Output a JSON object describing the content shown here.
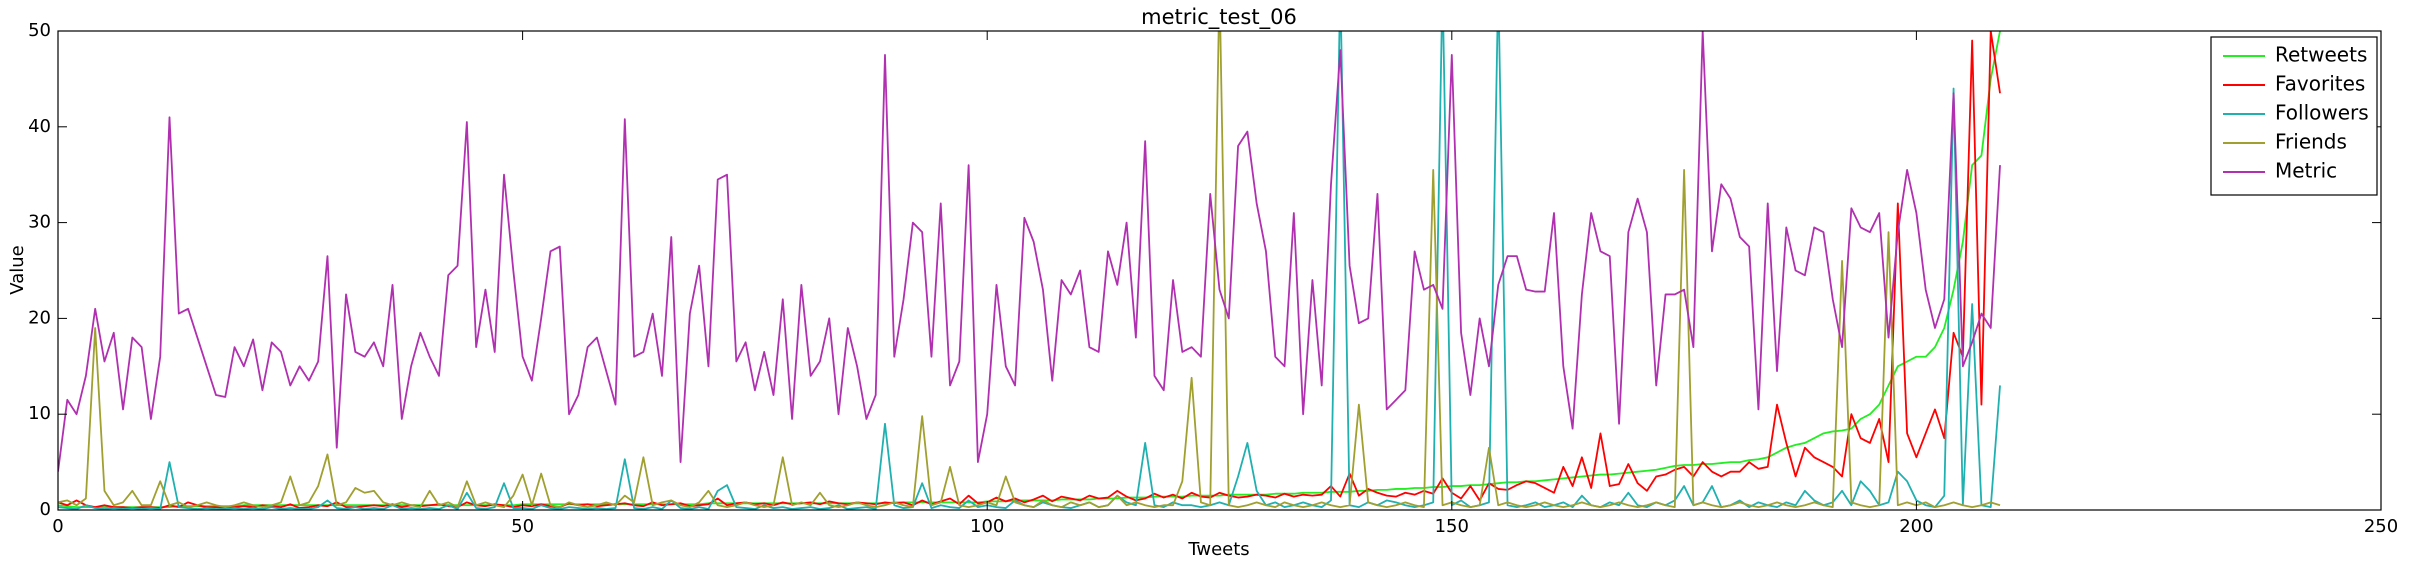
{
  "chart_data": {
    "type": "line",
    "title": "metric_test_06",
    "x_label": "Tweets",
    "y_label": "Value",
    "xlim": [
      0,
      250
    ],
    "ylim": [
      0,
      50
    ],
    "xticks": [
      0,
      50,
      100,
      150,
      200,
      250
    ],
    "yticks": [
      0,
      10,
      20,
      30,
      40,
      50
    ],
    "grid": false,
    "legend": "upper right",
    "x": [
      0,
      1,
      2,
      3,
      4,
      5,
      6,
      7,
      8,
      9,
      10,
      11,
      12,
      13,
      14,
      15,
      16,
      17,
      18,
      19,
      20,
      21,
      22,
      23,
      24,
      25,
      26,
      27,
      28,
      29,
      30,
      31,
      32,
      33,
      34,
      35,
      36,
      37,
      38,
      39,
      40,
      41,
      42,
      43,
      44,
      45,
      46,
      47,
      48,
      49,
      50,
      51,
      52,
      53,
      54,
      55,
      56,
      57,
      58,
      59,
      60,
      61,
      62,
      63,
      64,
      65,
      66,
      67,
      68,
      69,
      70,
      71,
      72,
      73,
      74,
      75,
      76,
      77,
      78,
      79,
      80,
      81,
      82,
      83,
      84,
      85,
      86,
      87,
      88,
      89,
      90,
      91,
      92,
      93,
      94,
      95,
      96,
      97,
      98,
      99,
      100,
      101,
      102,
      103,
      104,
      105,
      106,
      107,
      108,
      109,
      110,
      111,
      112,
      113,
      114,
      115,
      116,
      117,
      118,
      119,
      120,
      121,
      122,
      123,
      124,
      125,
      126,
      127,
      128,
      129,
      130,
      131,
      132,
      133,
      134,
      135,
      136,
      137,
      138,
      139,
      140,
      141,
      142,
      143,
      144,
      145,
      146,
      147,
      148,
      149,
      150,
      151,
      152,
      153,
      154,
      155,
      156,
      157,
      158,
      159,
      160,
      161,
      162,
      163,
      164,
      165,
      166,
      167,
      168,
      169,
      170,
      171,
      172,
      173,
      174,
      175,
      176,
      177,
      178,
      179,
      180,
      181,
      182,
      183,
      184,
      185,
      186,
      187,
      188,
      189,
      190,
      191,
      192,
      193,
      194,
      195,
      196,
      197,
      198,
      199,
      200,
      201,
      202,
      203,
      204,
      205,
      206,
      207,
      208,
      209
    ],
    "series": [
      {
        "name": "Retweets",
        "color": "#22ee22",
        "values": [
          0.5,
          0.4,
          0.3,
          0.3,
          0.3,
          0.3,
          0.3,
          0.3,
          0.3,
          0.3,
          0.3,
          0.3,
          0.3,
          0.4,
          0.4,
          0.4,
          0.4,
          0.4,
          0.4,
          0.4,
          0.5,
          0.5,
          0.5,
          0.5,
          0.5,
          0.5,
          0.5,
          0.5,
          0.5,
          0.5,
          0.5,
          0.5,
          0.5,
          0.5,
          0.5,
          0.5,
          0.5,
          0.5,
          0.5,
          0.5,
          0.5,
          0.5,
          0.5,
          0.5,
          0.5,
          0.5,
          0.5,
          0.5,
          0.5,
          0.5,
          0.6,
          0.6,
          0.6,
          0.6,
          0.6,
          0.6,
          0.6,
          0.6,
          0.6,
          0.6,
          0.6,
          0.6,
          0.6,
          0.6,
          0.6,
          0.6,
          0.6,
          0.6,
          0.6,
          0.6,
          0.7,
          0.7,
          0.7,
          0.7,
          0.7,
          0.7,
          0.7,
          0.7,
          0.7,
          0.7,
          0.7,
          0.7,
          0.7,
          0.7,
          0.7,
          0.7,
          0.7,
          0.7,
          0.7,
          0.7,
          0.8,
          0.8,
          0.8,
          0.8,
          0.8,
          0.8,
          0.8,
          0.8,
          0.8,
          0.8,
          0.9,
          0.9,
          0.9,
          1,
          1,
          1,
          1,
          1,
          1.1,
          1.1,
          1.1,
          1.1,
          1.2,
          1.2,
          1.2,
          1.3,
          1.3,
          1.3,
          1.4,
          1.4,
          1.4,
          1.4,
          1.5,
          1.5,
          1.5,
          1.5,
          1.6,
          1.6,
          1.6,
          1.6,
          1.6,
          1.7,
          1.7,
          1.7,
          1.8,
          1.8,
          1.8,
          1.9,
          1.9,
          1.9,
          2,
          2,
          2.1,
          2.1,
          2.2,
          2.2,
          2.3,
          2.3,
          2.4,
          2.4,
          2.5,
          2.5,
          2.6,
          2.6,
          2.7,
          2.8,
          2.9,
          2.9,
          3,
          3,
          3.1,
          3.2,
          3.3,
          3.4,
          3.5,
          3.6,
          3.7,
          3.7,
          3.8,
          3.9,
          4,
          4.1,
          4.2,
          4.4,
          4.6,
          4.7,
          4.7,
          4.8,
          4.8,
          4.9,
          5,
          5,
          5.2,
          5.3,
          5.5,
          6,
          6.5,
          6.8,
          7,
          7.5,
          8,
          8.2,
          8.3,
          8.5,
          9.5,
          10,
          11,
          13,
          15,
          15.5,
          16,
          16,
          17,
          19,
          23,
          28,
          36,
          37,
          45,
          50
        ]
      },
      {
        "name": "Favorites",
        "color": "#ff0000",
        "values": [
          0.8,
          0.5,
          1,
          0.5,
          0.3,
          0.5,
          0.3,
          0.3,
          0.2,
          0.3,
          0.3,
          0.2,
          0.5,
          0.3,
          0.8,
          0.5,
          0.3,
          0.3,
          0.2,
          0.3,
          0.4,
          0.3,
          0.5,
          0.4,
          0.3,
          0.6,
          0.2,
          0.3,
          0.5,
          0.4,
          0.8,
          0.3,
          0.3,
          0.4,
          0.5,
          0.4,
          0.6,
          0.3,
          0.5,
          0.4,
          0.5,
          0.6,
          0.4,
          0.3,
          0.8,
          0.5,
          0.4,
          0.6,
          0.5,
          0.3,
          0.5,
          0.4,
          0.6,
          0.4,
          0.3,
          0.7,
          0.5,
          0.6,
          0.4,
          0.5,
          0.6,
          0.7,
          0.5,
          0.4,
          0.8,
          0.5,
          0.6,
          0.7,
          0.4,
          0.5,
          0.6,
          1.2,
          0.5,
          0.7,
          0.8,
          0.6,
          0.7,
          0.5,
          0.8,
          0.6,
          0.7,
          0.8,
          0.6,
          0.9,
          0.7,
          0.6,
          0.8,
          0.7,
          0.6,
          0.8,
          0.7,
          0.8,
          0.5,
          1,
          0.6,
          0.9,
          1.2,
          0.6,
          1.5,
          0.7,
          0.8,
          1.3,
          0.9,
          1.2,
          0.8,
          1.1,
          1.5,
          0.9,
          1.4,
          1.2,
          1,
          1.5,
          1.2,
          1.3,
          2,
          1.4,
          1,
          1.2,
          1.7,
          1.3,
          1.6,
          1.2,
          1.8,
          1.4,
          1.3,
          1.8,
          1.5,
          1.3,
          1.4,
          1.6,
          1.5,
          1.3,
          1.7,
          1.4,
          1.6,
          1.5,
          1.6,
          2.5,
          1.4,
          3.8,
          1.5,
          2.2,
          1.8,
          1.5,
          1.4,
          1.8,
          1.6,
          2,
          1.7,
          3.3,
          1.8,
          1.2,
          2.5,
          1,
          2.8,
          2.2,
          2.1,
          2.6,
          3,
          2.8,
          2.3,
          1.8,
          4.5,
          2.5,
          5.5,
          2.3,
          8,
          2.5,
          2.7,
          4.8,
          2.8,
          2,
          3.5,
          3.7,
          4.2,
          4.5,
          3.5,
          5,
          4,
          3.5,
          4,
          4,
          5,
          4.3,
          4.5,
          11,
          7,
          3.5,
          6.5,
          5.5,
          5,
          4.5,
          3.5,
          10,
          7.5,
          7,
          9.5,
          5,
          32,
          8,
          5.5,
          8,
          10.5,
          7.5,
          18.5,
          16,
          49,
          11,
          50,
          43.5
        ]
      },
      {
        "name": "Followers",
        "color": "#20b0b0",
        "values": [
          0.3,
          0.2,
          0.1,
          0.5,
          0.2,
          0.1,
          0.2,
          0.1,
          0.2,
          0.1,
          0.2,
          0.1,
          5,
          0.3,
          0.2,
          0.1,
          0.2,
          0.1,
          0.1,
          0.2,
          0.1,
          0.2,
          0.1,
          0.3,
          0.1,
          0.2,
          0.1,
          0.1,
          0.3,
          1,
          0.2,
          0.1,
          0.3,
          0.1,
          0.2,
          0.1,
          0.5,
          0.1,
          0.2,
          0.1,
          0.2,
          0.1,
          0.5,
          0.1,
          1.8,
          0.2,
          0.1,
          0.3,
          2.8,
          0.2,
          0.2,
          0.1,
          0.5,
          0.2,
          0.1,
          0.3,
          0.2,
          0.1,
          0.2,
          0.1,
          0.2,
          5.3,
          0.2,
          0.1,
          0.3,
          0.1,
          1,
          0.2,
          0.1,
          0.3,
          0.1,
          2,
          2.6,
          0.3,
          0.2,
          0.1,
          0.5,
          0.2,
          0.3,
          0.1,
          0.2,
          0.3,
          0.1,
          0.2,
          0.5,
          0.1,
          0.2,
          0.3,
          0.1,
          9,
          0.5,
          0.2,
          0.3,
          2.8,
          0.2,
          0.5,
          0.3,
          0.2,
          1,
          0.3,
          0.5,
          0.3,
          0.2,
          1,
          0.5,
          0.3,
          0.8,
          0.5,
          0.3,
          0.2,
          0.5,
          0.8,
          0.3,
          0.5,
          1.5,
          0.8,
          0.5,
          7,
          0.5,
          0.3,
          0.8,
          0.5,
          0.5,
          0.3,
          0.5,
          0.8,
          0.5,
          3.5,
          7,
          2,
          0.5,
          0.8,
          0.3,
          0.5,
          0.8,
          0.5,
          0.3,
          1,
          55,
          0.5,
          0.3,
          0.8,
          0.5,
          1,
          0.8,
          0.5,
          0.3,
          0.5,
          0.8,
          55,
          0.5,
          1,
          0.3,
          0.5,
          0.8,
          55,
          0.5,
          0.3,
          0.5,
          0.8,
          0.3,
          0.5,
          0.8,
          0.3,
          1.5,
          0.5,
          0.3,
          0.8,
          0.5,
          1.8,
          0.5,
          0.3,
          0.8,
          0.5,
          1,
          2.5,
          0.5,
          0.8,
          2.5,
          0.3,
          0.5,
          1,
          0.3,
          0.8,
          0.5,
          0.3,
          0.8,
          0.5,
          2,
          1,
          0.5,
          0.8,
          2,
          0.5,
          3,
          2,
          0.5,
          0.8,
          4,
          3,
          1,
          0.5,
          0.3,
          1.5,
          44,
          0.5,
          21.5,
          0.5,
          0.3,
          13
        ]
      },
      {
        "name": "Friends",
        "color": "#a0a030",
        "values": [
          0.8,
          1,
          0.5,
          1.2,
          19,
          2,
          0.5,
          0.8,
          2,
          0.5,
          0.5,
          3,
          0.5,
          0.8,
          0.3,
          0.5,
          0.8,
          0.5,
          0.3,
          0.5,
          0.8,
          0.5,
          0.3,
          0.5,
          0.8,
          3.5,
          0.5,
          0.8,
          2.5,
          5.8,
          0.5,
          0.8,
          2.3,
          1.8,
          2,
          0.8,
          0.5,
          0.8,
          0.5,
          0.3,
          2,
          0.5,
          0.8,
          0.3,
          3,
          0.5,
          0.8,
          0.5,
          0.3,
          1.5,
          3.7,
          0.5,
          3.8,
          0.5,
          0.3,
          0.8,
          0.5,
          0.3,
          0.5,
          0.8,
          0.5,
          1.5,
          0.8,
          5.5,
          0.5,
          0.8,
          1,
          0.5,
          0.3,
          0.8,
          2,
          0.5,
          0.3,
          0.5,
          0.8,
          0.5,
          0.3,
          0.5,
          5.5,
          0.5,
          0.8,
          0.5,
          1.8,
          0.5,
          0.3,
          0.5,
          0.8,
          0.5,
          0.3,
          0.5,
          0.8,
          0.5,
          0.3,
          9.8,
          0.5,
          0.8,
          4.5,
          0.5,
          0.3,
          0.5,
          0.8,
          0.5,
          3.5,
          0.8,
          0.5,
          0.3,
          1,
          0.5,
          0.3,
          0.8,
          0.5,
          0.8,
          0.3,
          0.5,
          1.5,
          0.5,
          0.8,
          0.5,
          0.3,
          0.5,
          0.5,
          3,
          13.8,
          0.8,
          0.5,
          55,
          0.5,
          0.3,
          0.5,
          0.8,
          0.5,
          0.3,
          0.8,
          0.5,
          0.3,
          0.5,
          0.8,
          0.5,
          0.3,
          0.5,
          11,
          0.8,
          0.5,
          0.3,
          0.5,
          0.8,
          0.5,
          0.3,
          35.5,
          0.5,
          0.8,
          0.5,
          0.3,
          0.5,
          6.5,
          0.5,
          0.8,
          0.5,
          0.3,
          0.5,
          0.8,
          0.5,
          0.3,
          0.5,
          0.8,
          0.5,
          0.3,
          0.5,
          0.8,
          0.5,
          0.3,
          0.5,
          0.8,
          0.5,
          0.3,
          35.5,
          0.5,
          0.8,
          0.5,
          0.3,
          0.5,
          0.8,
          0.5,
          0.3,
          0.5,
          0.8,
          0.5,
          0.3,
          0.5,
          0.8,
          0.5,
          0.3,
          26,
          0.8,
          0.5,
          0.3,
          0.5,
          29,
          0.5,
          0.8,
          0.5,
          0.8,
          0.3,
          0.5,
          0.8,
          0.5,
          0.3,
          0.5,
          0.8,
          0.5
        ]
      },
      {
        "name": "Metric",
        "color": "#b030b0",
        "values": [
          4,
          11.5,
          10,
          14,
          21,
          15.5,
          18.5,
          10.5,
          18,
          17,
          9.5,
          16,
          41,
          20.5,
          21,
          18,
          15,
          12,
          11.8,
          17,
          15,
          17.8,
          12.5,
          17.5,
          16.5,
          13,
          15,
          13.5,
          15.5,
          26.5,
          6.5,
          22.5,
          16.5,
          16,
          17.5,
          15,
          23.5,
          9.5,
          15,
          18.5,
          16,
          14,
          24.5,
          25.5,
          40.5,
          17,
          23,
          16.5,
          35,
          25,
          16,
          13.5,
          20,
          27,
          27.5,
          10,
          12,
          17,
          18,
          14.5,
          11,
          40.8,
          16,
          16.5,
          20.5,
          14,
          28.5,
          5,
          20.5,
          25.5,
          15,
          34.5,
          35,
          15.5,
          17.5,
          12.5,
          16.5,
          12,
          22,
          9.5,
          23.5,
          14,
          15.5,
          20,
          10,
          19,
          15,
          9.5,
          12,
          47.5,
          16,
          22,
          30,
          29,
          16,
          32,
          13,
          15.5,
          36,
          5,
          10,
          23.5,
          15,
          13,
          30.5,
          28,
          23,
          13.5,
          24,
          22.5,
          25,
          17,
          16.5,
          27,
          23.5,
          30,
          18,
          38.5,
          14,
          12.5,
          24,
          16.5,
          17,
          16,
          33,
          23,
          20,
          38,
          39.5,
          32,
          27,
          16,
          15,
          31,
          10,
          24,
          13,
          34,
          48,
          25.5,
          19.5,
          20,
          33,
          10.5,
          11.5,
          12.5,
          27,
          23,
          23.5,
          21,
          47.5,
          18.5,
          12,
          20,
          15,
          23.5,
          26.5,
          26.5,
          23,
          22.8,
          22.8,
          31,
          15,
          8.5,
          22.5,
          31,
          27,
          26.5,
          9,
          29,
          32.5,
          29,
          13,
          22.5,
          22.5,
          23,
          17,
          50,
          27,
          34,
          32.5,
          28.5,
          27.5,
          10.5,
          32,
          14.5,
          29.5,
          25,
          24.5,
          29.5,
          29,
          22,
          17,
          31.5,
          29.5,
          29,
          31,
          18,
          29,
          35.5,
          31,
          23,
          19,
          22,
          43.5,
          15,
          17.5,
          20.5,
          19,
          36
        ]
      }
    ]
  }
}
